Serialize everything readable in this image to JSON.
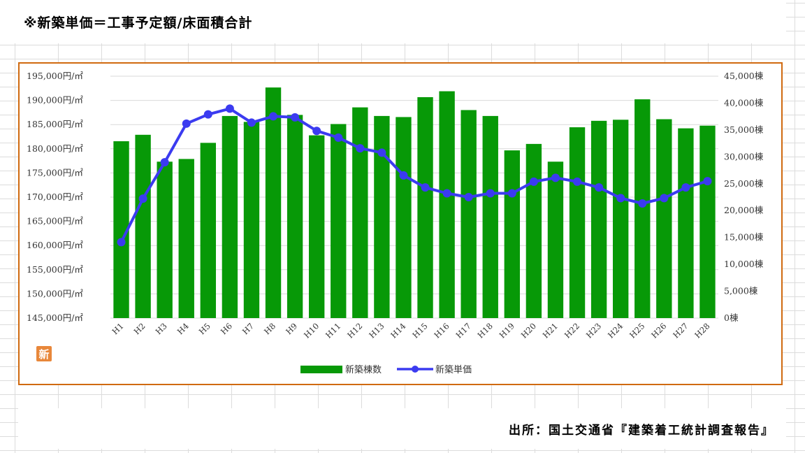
{
  "title": "※新築単価＝工事予定額/床面積合計",
  "source": "出所：国土交通省『建築着工統計調査報告』",
  "logo": {
    "char": "新",
    "color": "#e8873a"
  },
  "colors": {
    "bar": "#079907",
    "line": "#3b3bf0",
    "border": "#d06a10",
    "grid": "#d9d9d9"
  },
  "chart_data": {
    "type": "bar+line",
    "categories": [
      "H1",
      "H2",
      "H3",
      "H4",
      "H5",
      "H6",
      "H7",
      "H8",
      "H9",
      "H10",
      "H11",
      "H12",
      "H13",
      "H14",
      "H15",
      "H16",
      "H17",
      "H18",
      "H19",
      "H20",
      "H21",
      "H22",
      "H23",
      "H24",
      "H25",
      "H26",
      "H27",
      "H28"
    ],
    "series": [
      {
        "name": "新築棟数",
        "type": "bar",
        "axis": "right",
        "values": [
          32900,
          34100,
          29100,
          29600,
          32600,
          37600,
          36500,
          42900,
          37800,
          34000,
          36100,
          39200,
          37600,
          37400,
          41100,
          42200,
          38700,
          37600,
          31200,
          32400,
          29100,
          35500,
          36700,
          36900,
          40700,
          37000,
          35300,
          35800
        ]
      },
      {
        "name": "新築単価",
        "type": "line",
        "axis": "left",
        "values": [
          160700,
          169700,
          177200,
          185200,
          187100,
          188300,
          185400,
          186700,
          186500,
          183700,
          182300,
          180100,
          179200,
          174500,
          172000,
          170800,
          170000,
          170800,
          170800,
          173200,
          174000,
          173200,
          172000,
          169800,
          168700,
          169800,
          172000,
          173300
        ]
      }
    ],
    "left_axis": {
      "min": 145000,
      "max": 195000,
      "step": 5000,
      "tick_labels": [
        "145,000円/㎡",
        "150,000円/㎡",
        "155,000円/㎡",
        "160,000円/㎡",
        "165,000円/㎡",
        "170,000円/㎡",
        "175,000円/㎡",
        "180,000円/㎡",
        "185,000円/㎡",
        "190,000円/㎡",
        "195,000円/㎡"
      ]
    },
    "right_axis": {
      "min": 0,
      "max": 45000,
      "step": 5000,
      "tick_labels": [
        "0棟",
        "5,000棟",
        "10,000棟",
        "15,000棟",
        "20,000棟",
        "25,000棟",
        "30,000棟",
        "35,000棟",
        "40,000棟",
        "45,000棟"
      ]
    },
    "grid": true,
    "legend": {
      "position": "bottom"
    }
  }
}
